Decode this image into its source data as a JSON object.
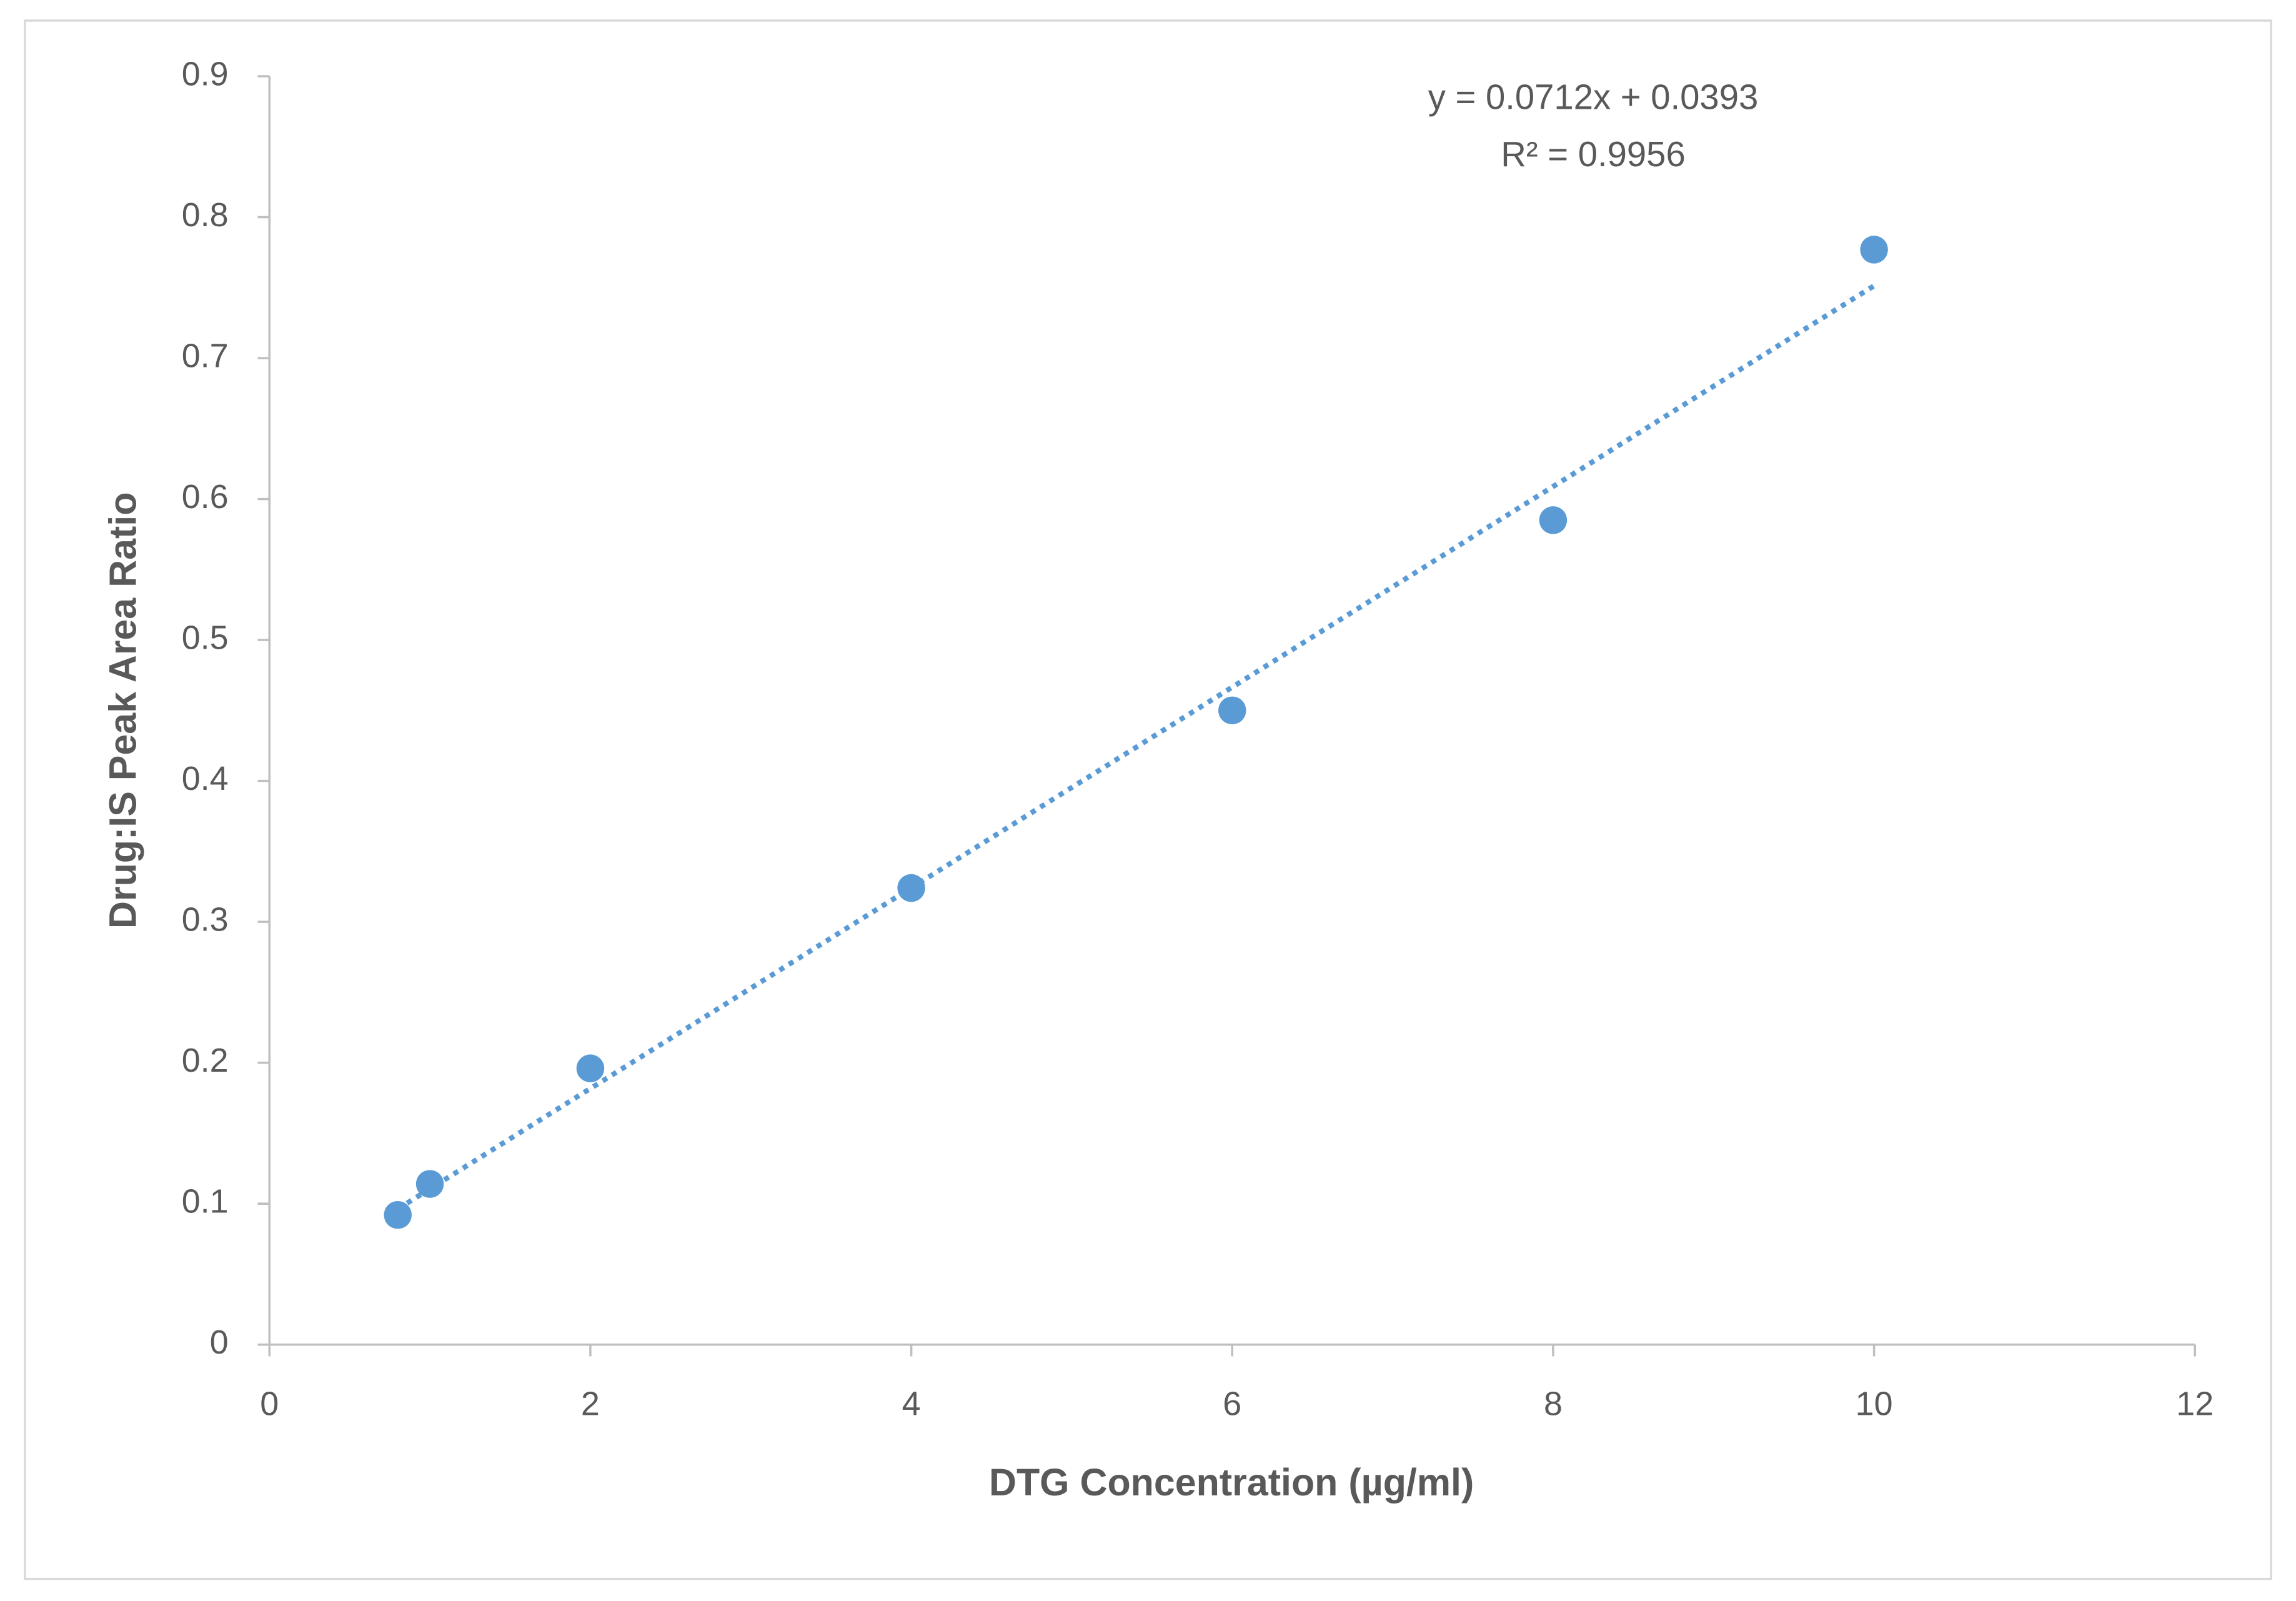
{
  "chart_data": {
    "type": "scatter",
    "x_label": "DTG Concentration (µg/ml)",
    "y_label": "Drug:IS Peak Area Ratio",
    "series": [
      {
        "color": "#5b9bd5",
        "x": [
          0.8,
          1,
          2,
          4,
          6,
          8,
          10
        ],
        "values": [
          0.092,
          0.114,
          0.196,
          0.324,
          0.45,
          0.585,
          0.777
        ]
      }
    ],
    "trendline": {
      "label": "y = 0.0712x + 0.0393",
      "slope": 0.0712,
      "intercept": 0.0393,
      "r2_label": "R² = 0.9956",
      "style": "dotted"
    },
    "xlim": [
      0,
      12
    ],
    "xticks": [
      0,
      2,
      4,
      6,
      8,
      10,
      12
    ],
    "ylim": [
      0,
      0.9
    ],
    "yticks": [
      0,
      0.1,
      0.2,
      0.3,
      0.4,
      0.5,
      0.6,
      0.7,
      0.8,
      0.9
    ],
    "grid": false
  }
}
